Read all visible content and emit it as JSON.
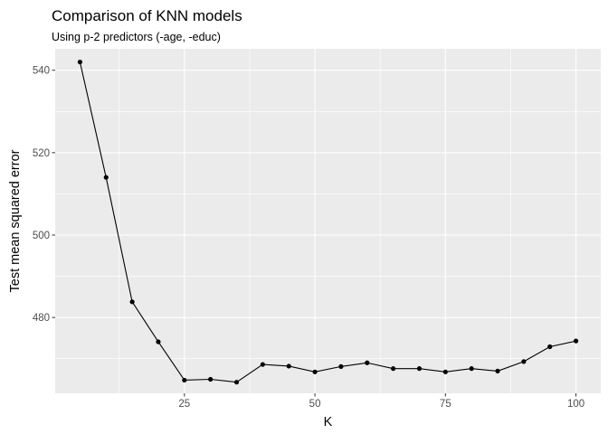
{
  "chart_data": {
    "type": "line",
    "title": "Comparison of KNN models",
    "subtitle": "Using p-2 predictors (-age, -educ)",
    "xlabel": "K",
    "ylabel": "Test mean squared error",
    "x": [
      5,
      10,
      15,
      20,
      25,
      30,
      35,
      40,
      45,
      50,
      55,
      60,
      65,
      70,
      75,
      80,
      85,
      90,
      95,
      100
    ],
    "series": [
      {
        "values": [
          542.0,
          514.0,
          483.8,
          474.1,
          464.8,
          465.0,
          464.3,
          468.6,
          468.2,
          466.8,
          468.1,
          469.0,
          467.6,
          467.6,
          466.8,
          467.6,
          467.0,
          469.3,
          472.9,
          474.3
        ]
      }
    ],
    "xlim": [
      0.25,
      104.75
    ],
    "ylim": [
      461.6,
      545.2
    ],
    "xticks": [
      25,
      50,
      75,
      100
    ],
    "yticks": [
      480,
      500,
      520,
      540
    ],
    "grid": true,
    "legend": "none",
    "colors": {
      "panel": "#ebebeb",
      "grid": "#ffffff",
      "line": "#000000",
      "points": "#000000"
    }
  }
}
